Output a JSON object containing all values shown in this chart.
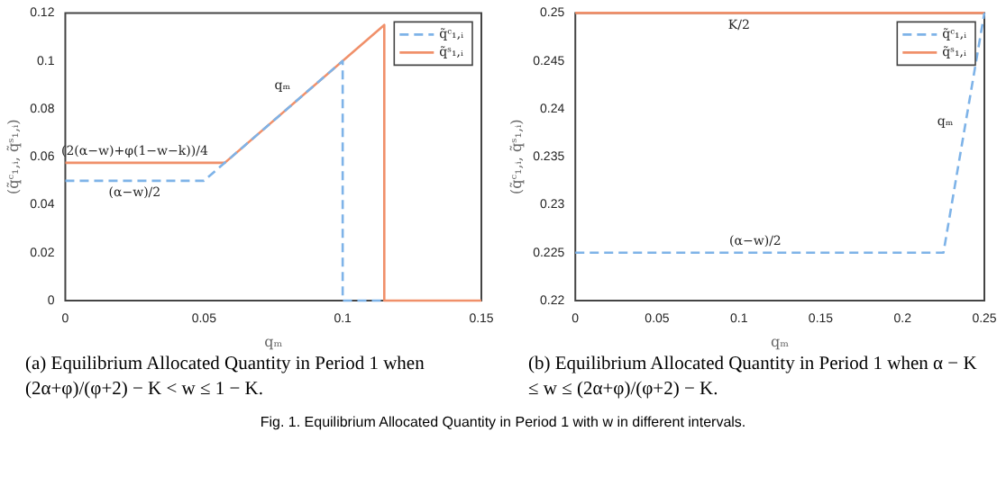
{
  "chart_data": [
    {
      "type": "line",
      "title": "(a) Equilibrium Allocated Quantity in Period 1 when (2α+φ)/(φ+2) − K < w ≤ 1 − K.",
      "xlabel": "qₘ",
      "ylabel": "(q̃ᶜ₁,ᵢ, q̃ˢ₁,ᵢ)",
      "xlim": [
        0,
        0.15
      ],
      "xticks": [
        0,
        0.05,
        0.1,
        0.15
      ],
      "ylim": [
        0,
        0.12
      ],
      "yticks": [
        0,
        0.02,
        0.04,
        0.06,
        0.08,
        0.1,
        0.12
      ],
      "grid": false,
      "legend": "top right",
      "marker": "none",
      "series": [
        {
          "name": "q̃ᶜ₁,ᵢ",
          "color": "#7eb3e8",
          "line_style": "dashed",
          "x": [
            0,
            0.05,
            0.1,
            0.1,
            0.115
          ],
          "values": [
            0.05,
            0.05,
            0.1,
            0,
            0
          ]
        },
        {
          "name": "q̃ˢ₁,ᵢ",
          "color": "#f0906a",
          "line_style": "solid",
          "x": [
            0,
            0.0575,
            0.115,
            0.115,
            0.15
          ],
          "values": [
            0.0575,
            0.0575,
            0.115,
            0,
            0
          ]
        }
      ],
      "annotations": [
        {
          "text": "(2(α−w)+φ(1−w−k))/4",
          "x": 0.025,
          "y": 0.0575
        },
        {
          "text": "(α−w)/2",
          "x": 0.025,
          "y": 0.05
        },
        {
          "text": "qₘ",
          "x": 0.085,
          "y": 0.085
        },
        "Fig. 1. Equilibrium Allocated Quantity in Period 1 with w in different intervals."
      ]
    },
    {
      "type": "line",
      "title": "(b) Equilibrium Allocated Quantity in Period 1 when α − K ≤ w ≤ (2α+φ)/(φ+2) − K.",
      "xlabel": "qₘ",
      "ylabel": "(q̃ᶜ₁,ᵢ, q̃ˢ₁,ᵢ)",
      "xlim": [
        0,
        0.25
      ],
      "xticks": [
        0,
        0.05,
        0.1,
        0.15,
        0.2,
        0.25
      ],
      "ylim": [
        0.22,
        0.25
      ],
      "yticks": [
        0.22,
        0.225,
        0.23,
        0.235,
        0.24,
        0.245,
        0.25
      ],
      "grid": false,
      "legend": "top right",
      "marker": "none",
      "series": [
        {
          "name": "q̃ᶜ₁,ᵢ",
          "color": "#7eb3e8",
          "line_style": "dashed",
          "x": [
            0,
            0.225,
            0.25
          ],
          "values": [
            0.225,
            0.225,
            0.25
          ]
        },
        {
          "name": "q̃ˢ₁,ᵢ",
          "color": "#f0906a",
          "line_style": "solid",
          "x": [
            0,
            0.25
          ],
          "values": [
            0.25,
            0.25
          ]
        }
      ],
      "annotations": [
        {
          "text": "K/2",
          "x": 0.1,
          "y": 0.25
        },
        {
          "text": "(α−w)/2",
          "x": 0.11,
          "y": 0.225
        },
        {
          "text": "qₘ",
          "x": 0.2375,
          "y": 0.2375
        }
      ]
    }
  ]
}
